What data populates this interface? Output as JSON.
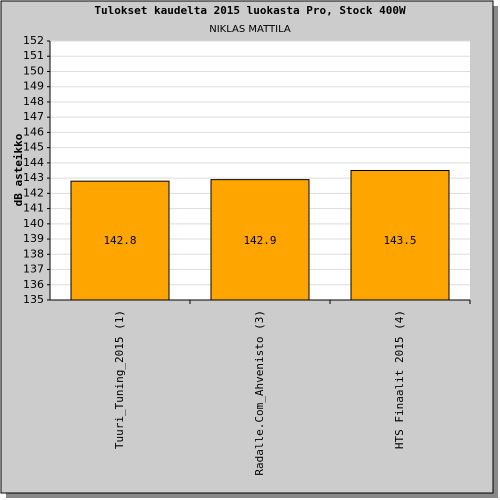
{
  "chart_data": {
    "type": "bar",
    "title": "Tulokset kaudelta 2015 luokasta Pro, Stock 400W",
    "subtitle": "NIKLAS MATTILA",
    "y_label": "dB asteikko",
    "categories": [
      "Tuuri_Tuning_2015 (1)",
      "Radalle.Com_Ahvenisto (3)",
      "HTS Finaalit 2015 (4)"
    ],
    "values": [
      142.8,
      142.9,
      143.5
    ],
    "color": "#ffa500",
    "ylim": [
      135,
      152
    ],
    "yticks": [
      135,
      136,
      137,
      138,
      139,
      140,
      141,
      142,
      143,
      144,
      145,
      146,
      147,
      148,
      149,
      150,
      151,
      152
    ],
    "grid": true
  }
}
